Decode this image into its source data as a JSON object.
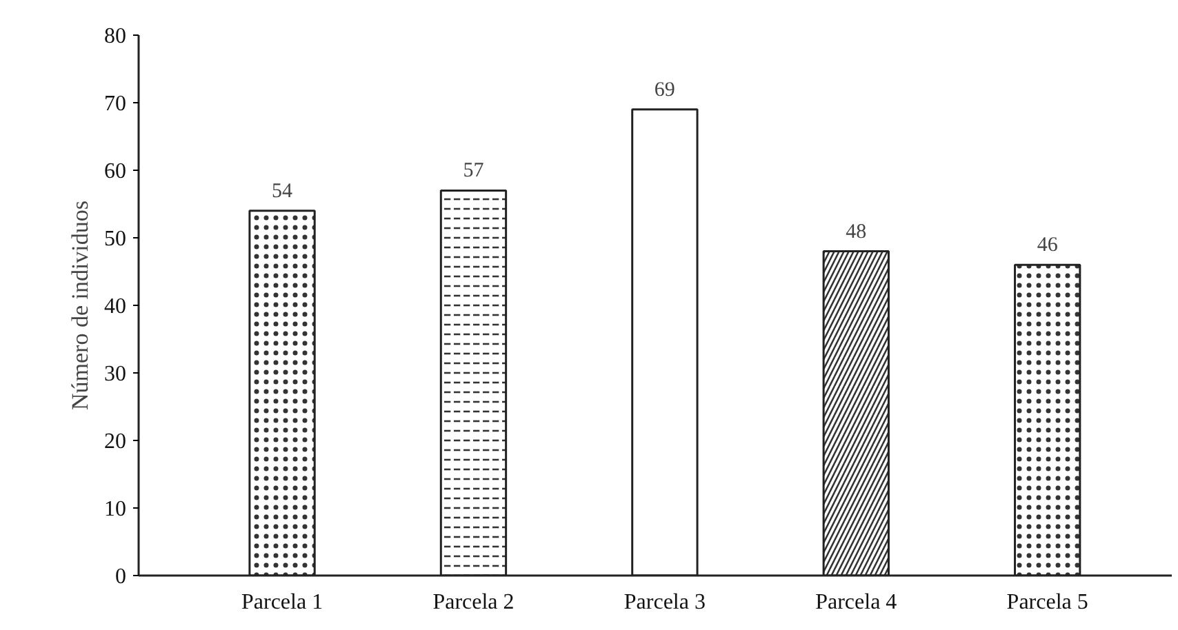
{
  "chart_data": {
    "type": "bar",
    "ylabel": "Número de individuos",
    "categories": [
      "Parcela 1",
      "Parcela 2",
      "Parcela 3",
      "Parcela 4",
      "Parcela 5"
    ],
    "values": [
      54,
      57,
      69,
      48,
      46
    ],
    "colors": [
      "#ffffff",
      "#ffffff",
      "#ffffff",
      "#ffffff",
      "#ffffff"
    ],
    "ylim": [
      0,
      80
    ],
    "yticks": [
      0,
      10,
      20,
      30,
      40,
      50,
      60,
      70,
      80
    ],
    "data_labels": true,
    "grid": false
  }
}
